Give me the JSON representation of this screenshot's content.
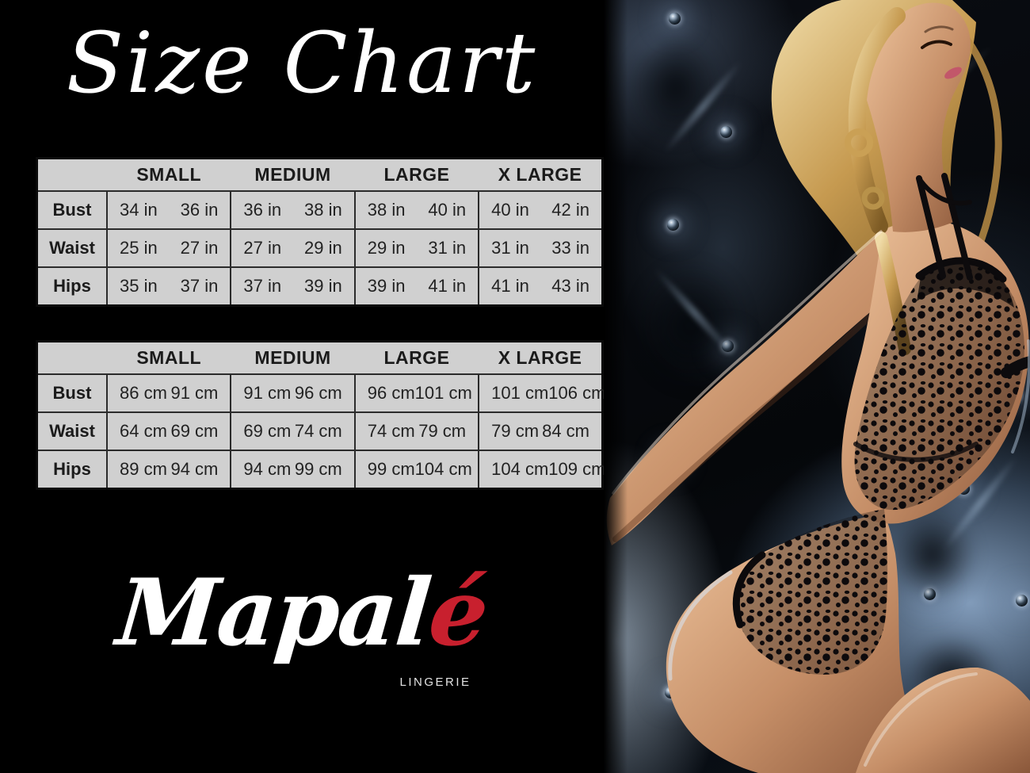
{
  "page": {
    "title": "Size Chart",
    "background_color": "#000000"
  },
  "chart_data": [
    {
      "type": "table",
      "name": "size-chart-inches",
      "unit": "in",
      "columns": [
        "SMALL",
        "MEDIUM",
        "LARGE",
        "X LARGE"
      ],
      "rows": [
        {
          "label": "Bust",
          "values": [
            [
              "34 in",
              "36 in"
            ],
            [
              "36 in",
              "38 in"
            ],
            [
              "38 in",
              "40 in"
            ],
            [
              "40 in",
              "42 in"
            ]
          ]
        },
        {
          "label": "Waist",
          "values": [
            [
              "25 in",
              "27 in"
            ],
            [
              "27 in",
              "29 in"
            ],
            [
              "29 in",
              "31 in"
            ],
            [
              "31 in",
              "33 in"
            ]
          ]
        },
        {
          "label": "Hips",
          "values": [
            [
              "35 in",
              "37 in"
            ],
            [
              "37 in",
              "39 in"
            ],
            [
              "39 in",
              "41 in"
            ],
            [
              "41 in",
              "43 in"
            ]
          ]
        }
      ]
    },
    {
      "type": "table",
      "name": "size-chart-centimeters",
      "unit": "cm",
      "columns": [
        "SMALL",
        "MEDIUM",
        "LARGE",
        "X LARGE"
      ],
      "rows": [
        {
          "label": "Bust",
          "values": [
            [
              "86 cm",
              "91 cm"
            ],
            [
              "91 cm",
              "96 cm"
            ],
            [
              "96 cm",
              "101 cm"
            ],
            [
              "101 cm",
              "106 cm"
            ]
          ]
        },
        {
          "label": "Waist",
          "values": [
            [
              "64 cm",
              "69 cm"
            ],
            [
              "69 cm",
              "74 cm"
            ],
            [
              "74 cm",
              "79 cm"
            ],
            [
              "79 cm",
              "84 cm"
            ]
          ]
        },
        {
          "label": "Hips",
          "values": [
            [
              "89 cm",
              "94 cm"
            ],
            [
              "94 cm",
              "99 cm"
            ],
            [
              "99 cm",
              "104 cm"
            ],
            [
              "104 cm",
              "109 cm"
            ]
          ]
        }
      ]
    }
  ],
  "brand": {
    "logo_main": "Mapal",
    "logo_accent": "é",
    "tagline": "LINGERIE",
    "accent_color": "#c8202e"
  },
  "photo": {
    "alt": "Blonde model in a black floral lace bodysuit leaning back against dark blue tufted leather"
  },
  "colors": {
    "table_background": "#d0d0d0",
    "table_text": "#1b1b1b",
    "title_color": "#ffffff"
  }
}
